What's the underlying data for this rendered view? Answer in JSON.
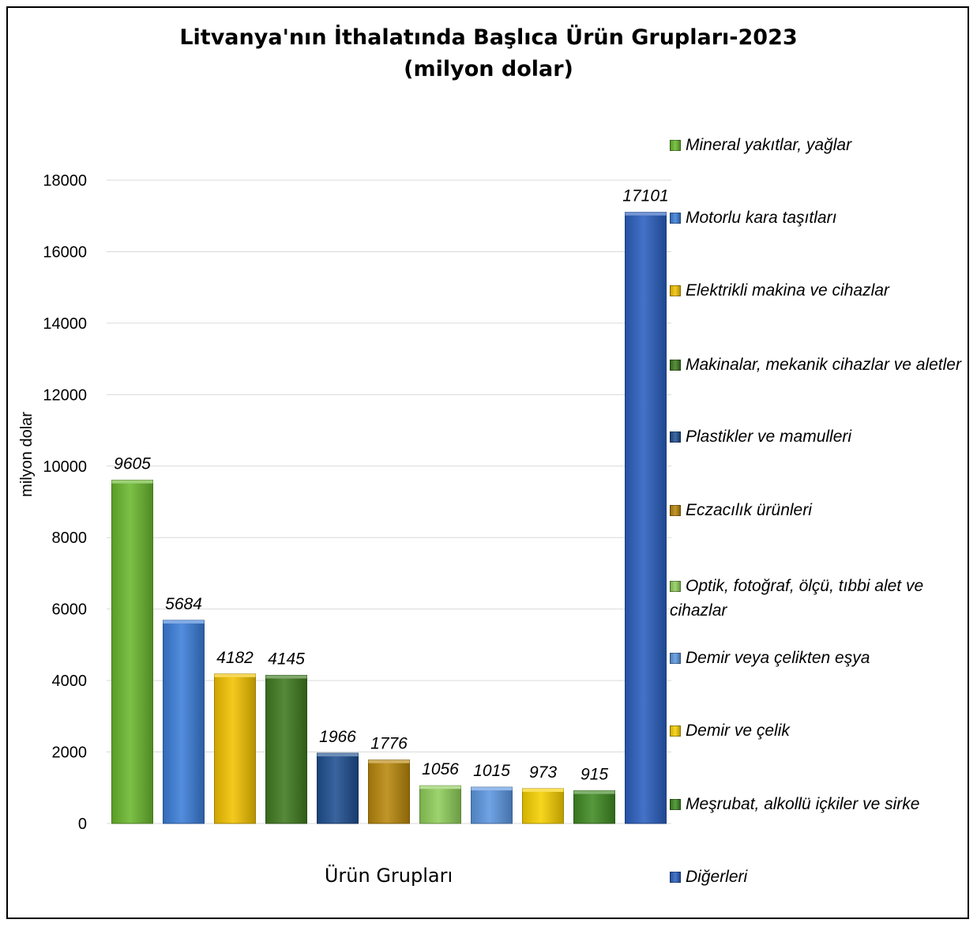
{
  "chart_data": {
    "type": "bar",
    "title": "Litvanya'nın İthalatında Başlıca Ürün Grupları-2023",
    "subtitle": "(milyon dolar)",
    "xlabel": "Ürün Grupları",
    "ylabel": "milyon dolar",
    "ylim": [
      0,
      18000
    ],
    "yticks": [
      0,
      2000,
      4000,
      6000,
      8000,
      10000,
      12000,
      14000,
      16000,
      18000
    ],
    "grid": true,
    "legend_position": "right",
    "categories": [
      "Mineral yakıtlar, yağlar",
      "Motorlu kara taşıtları",
      "Elektrikli makina ve cihazlar",
      "Makinalar, mekanik cihazlar ve aletler",
      "Plastikler ve mamulleri",
      "Eczacılık ürünleri",
      "Optik, fotoğraf, ölçü, tıbbi alet ve cihazlar",
      "Demir veya çelikten eşya",
      "Demir ve çelik",
      "Meşrubat, alkollü içkiler ve sirke",
      "Diğerleri"
    ],
    "values": [
      9605,
      5684,
      4182,
      4145,
      1966,
      1776,
      1056,
      1015,
      973,
      915,
      17101
    ],
    "colors": [
      "#6ab82e",
      "#3b7dd8",
      "#f2c200",
      "#3f7a1f",
      "#1f4f91",
      "#b8860b",
      "#8fce5a",
      "#5c96e0",
      "#f7d000",
      "#3f8a22",
      "#2a5fbf"
    ]
  }
}
